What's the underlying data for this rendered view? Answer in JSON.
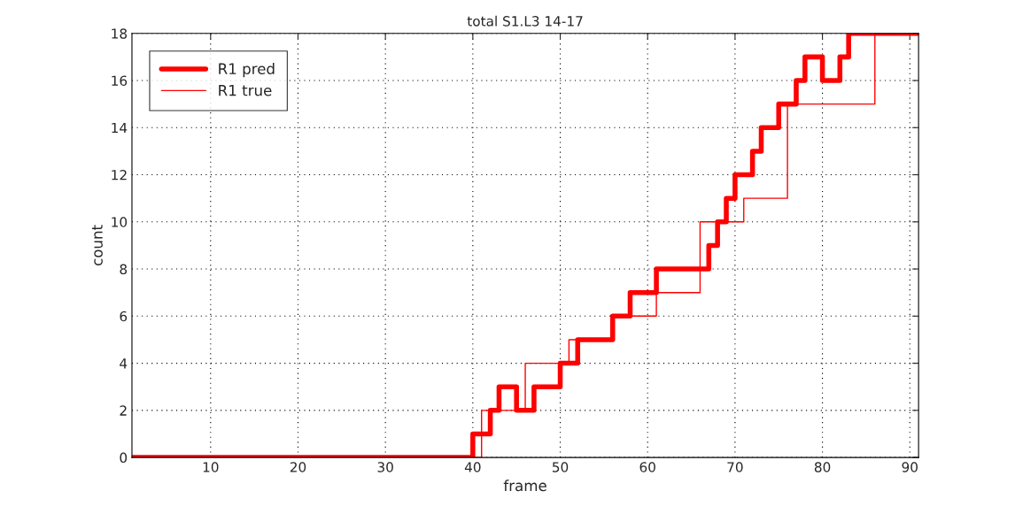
{
  "chart_data": {
    "type": "step",
    "title": "total S1.L3 14-17",
    "xlabel": "frame",
    "ylabel": "count",
    "series": [
      {
        "name": "R1 pred",
        "color": "#ff0000",
        "x": [
          1,
          40,
          42,
          43,
          45,
          47,
          50,
          52,
          56,
          58,
          61,
          67,
          68,
          69,
          70,
          72,
          73,
          75,
          77,
          78,
          80,
          82,
          83,
          91
        ],
        "values": [
          0,
          1,
          2,
          3,
          2,
          3,
          4,
          5,
          6,
          7,
          8,
          9,
          10,
          11,
          12,
          13,
          14,
          15,
          16,
          17,
          16,
          17,
          18,
          18
        ]
      },
      {
        "name": "R1 true",
        "color": "#ff0000",
        "x": [
          1,
          41,
          46,
          51,
          56,
          61,
          66,
          71,
          76,
          86,
          91
        ],
        "values": [
          0,
          2,
          4,
          5,
          6,
          7,
          10,
          11,
          15,
          18,
          18
        ]
      }
    ],
    "xlim": [
      1,
      91
    ],
    "ylim": [
      0,
      18
    ],
    "xticks": [
      10,
      20,
      30,
      40,
      50,
      60,
      70,
      80,
      90
    ],
    "yticks": [
      0,
      2,
      4,
      6,
      8,
      10,
      12,
      14,
      16,
      18
    ],
    "grid": true,
    "legend": "top left"
  }
}
